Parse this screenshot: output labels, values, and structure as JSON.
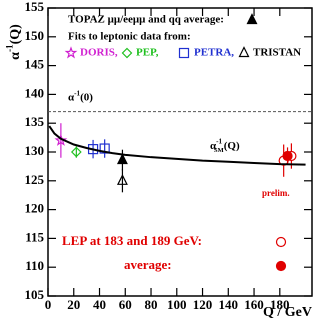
{
  "chart_data": {
    "type": "scatter",
    "x_label": "Q / GeV",
    "y_label": {
      "base": "α",
      "sup": "-1",
      "rest": "(Q)"
    },
    "xlim": [
      0,
      205
    ],
    "ylim": [
      105,
      155
    ],
    "xticks": [
      0,
      20,
      40,
      60,
      80,
      100,
      120,
      140,
      160,
      180
    ],
    "yticks": [
      105,
      110,
      115,
      120,
      125,
      130,
      135,
      140,
      145,
      150,
      155
    ],
    "reference_line": {
      "value": 137,
      "label": {
        "base": "α",
        "sup": "-1",
        "rest": "(0)"
      }
    },
    "legend_title": "Fits to leptonic data from:",
    "curve_label": {
      "base": "α",
      "sup": "-1",
      "sub": "SM",
      "rest": "(Q)"
    },
    "note": "prelim.",
    "series": [
      {
        "name": "TOPAZ μμ/eeμμ and qq average:",
        "color": "#000000",
        "marker": "triangle-filled",
        "x": [
          57.8
        ],
        "values": [
          128.6
        ],
        "errors": [
          1.8
        ]
      },
      {
        "name": "DORIS,",
        "color": "#d020d0",
        "marker": "star",
        "x": [
          10
        ],
        "values": [
          132
        ],
        "errors": [
          3
        ]
      },
      {
        "name": "PEP,",
        "color": "#20c020",
        "marker": "diamond",
        "x": [
          22
        ],
        "values": [
          130
        ],
        "errors": [
          1
        ]
      },
      {
        "name": "PETRA,",
        "color": "#2030d0",
        "marker": "square",
        "x": [
          35,
          44
        ],
        "values": [
          130.5,
          130.6
        ],
        "errors": [
          1.6,
          1.6
        ]
      },
      {
        "name": "TRISTAN",
        "color": "#000000",
        "marker": "triangle",
        "x": [
          57.8
        ],
        "values": [
          125
        ],
        "errors": [
          2
        ]
      },
      {
        "name": "LEP at 183 and 189 GeV:",
        "color": "#e00000",
        "marker": "circle",
        "x": [
          183,
          189
        ],
        "values": [
          128.5,
          129.3
        ],
        "errors": [
          2.8,
          2.2
        ]
      },
      {
        "name": "average:",
        "color": "#e00000",
        "marker": "circle-filled",
        "x": [
          186
        ],
        "values": [
          129.3
        ],
        "errors": [
          1.5
        ]
      },
      {
        "color": "#000000",
        "marker": "line",
        "x": [
          1,
          5,
          10,
          20,
          30,
          40,
          50,
          60,
          80,
          100,
          120,
          140,
          160,
          180,
          200
        ],
        "values": [
          134.5,
          133.2,
          132.3,
          131.3,
          130.7,
          130.2,
          129.8,
          129.5,
          129.1,
          128.8,
          128.5,
          128.3,
          128.1,
          127.9,
          127.8
        ]
      }
    ]
  }
}
